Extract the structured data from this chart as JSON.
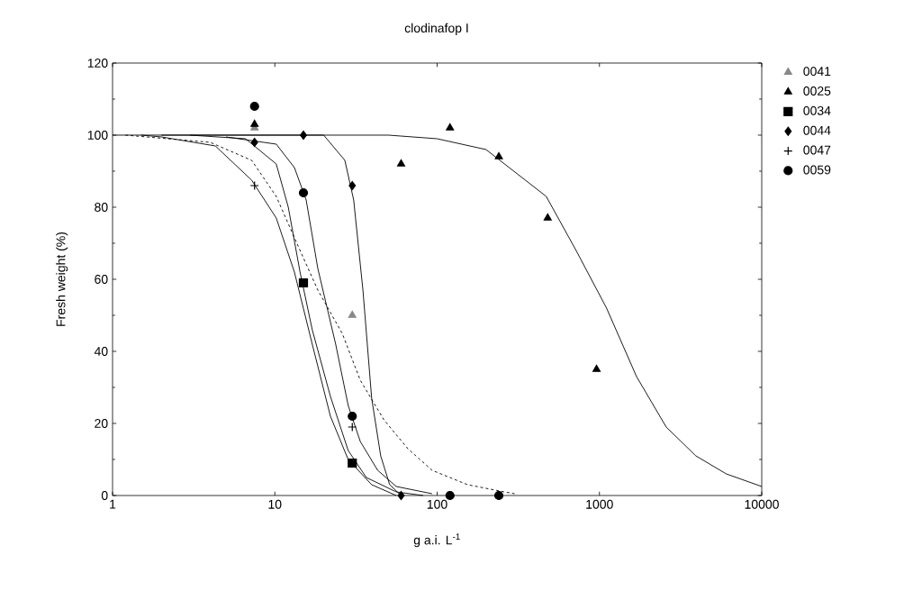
{
  "chart_data": {
    "type": "scatter",
    "title": "clodinafop I",
    "xlabel": "g a.i. L$^{-1}$",
    "ylabel": "Fresh weight (%)",
    "log": "x",
    "xlim": [
      1,
      10000
    ],
    "ylim": [
      0,
      120
    ],
    "xticks": [
      1,
      10,
      100,
      1000,
      10000
    ],
    "yticks": [
      0,
      20,
      40,
      60,
      80,
      100,
      120
    ],
    "legend": "top right",
    "series": [
      {
        "name": "0041",
        "marker": "triangle",
        "color": "#888888",
        "x": [
          7.5,
          30
        ],
        "values": [
          102,
          50
        ]
      },
      {
        "name": "0025",
        "marker": "triangle",
        "color": "#000000",
        "x": [
          7.5,
          60,
          120,
          240,
          480,
          960
        ],
        "values": [
          103,
          92,
          102,
          94,
          77,
          35
        ]
      },
      {
        "name": "0034",
        "marker": "square",
        "color": "#000000",
        "x": [
          15,
          30
        ],
        "values": [
          59,
          9
        ]
      },
      {
        "name": "0044",
        "marker": "diamond",
        "color": "#000000",
        "x": [
          7.5,
          15,
          30,
          60
        ],
        "values": [
          98,
          100,
          86,
          0
        ]
      },
      {
        "name": "0047",
        "marker": "cross",
        "color": "#000000",
        "x": [
          7.5,
          30
        ],
        "values": [
          86,
          19
        ]
      },
      {
        "name": "0059",
        "marker": "circle",
        "color": "#000000",
        "x": [
          7.5,
          15,
          30,
          120,
          240
        ],
        "values": [
          108,
          84,
          22,
          0,
          0
        ]
      },
      {
        "type": "line",
        "line_style": "dashed",
        "color": "#000000",
        "x": [
          1.2,
          4,
          7.2,
          10.2,
          14.3,
          18.4,
          26,
          33.6,
          47,
          66,
          93,
          154,
          259,
          300
        ],
        "values": [
          100,
          98,
          93,
          83,
          68,
          57,
          45,
          32,
          21,
          13,
          7,
          3,
          1,
          0.5
        ]
      },
      {
        "type": "line",
        "line_style": "solid",
        "color": "#000000",
        "x": [
          1,
          50,
          100,
          200,
          470,
          718,
          1106,
          1693,
          2579,
          3928,
          6046,
          10000
        ],
        "values": [
          100,
          100,
          99,
          96,
          83,
          68,
          52,
          33,
          19,
          11,
          6,
          2.5
        ]
      },
      {
        "type": "line",
        "line_style": "solid",
        "color": "#000000",
        "x": [
          2,
          3,
          6.6,
          10.2,
          12.1,
          14.3,
          17,
          22,
          28.3,
          36.6,
          56,
          82
        ],
        "values": [
          100,
          100,
          99,
          92,
          80,
          62,
          46,
          27.5,
          12.5,
          5,
          1,
          0
        ]
      },
      {
        "type": "line",
        "line_style": "solid",
        "color": "#000000",
        "x": [
          3,
          10,
          20,
          27,
          30.6,
          34.9,
          39.5,
          44.9,
          51,
          60
        ],
        "values": [
          100,
          100,
          100,
          93,
          82,
          57,
          27,
          11,
          3,
          0
        ]
      },
      {
        "type": "line",
        "line_style": "solid",
        "color": "#000000",
        "x": [
          1.5,
          2,
          4.3,
          7.2,
          10.2,
          13.2,
          17,
          22,
          28.3,
          39.5,
          56
        ],
        "values": [
          100,
          99.5,
          97,
          87.5,
          77,
          62,
          42,
          22,
          10,
          3,
          0
        ]
      },
      {
        "type": "line",
        "line_style": "solid",
        "color": "#000000",
        "x": [
          5,
          10.2,
          13.2,
          15.6,
          18.4,
          23.7,
          28.3,
          33.6,
          43,
          56,
          93
        ],
        "values": [
          99.5,
          97.5,
          91,
          82,
          63,
          42,
          25,
          15,
          7,
          2.5,
          0.5
        ]
      }
    ]
  }
}
